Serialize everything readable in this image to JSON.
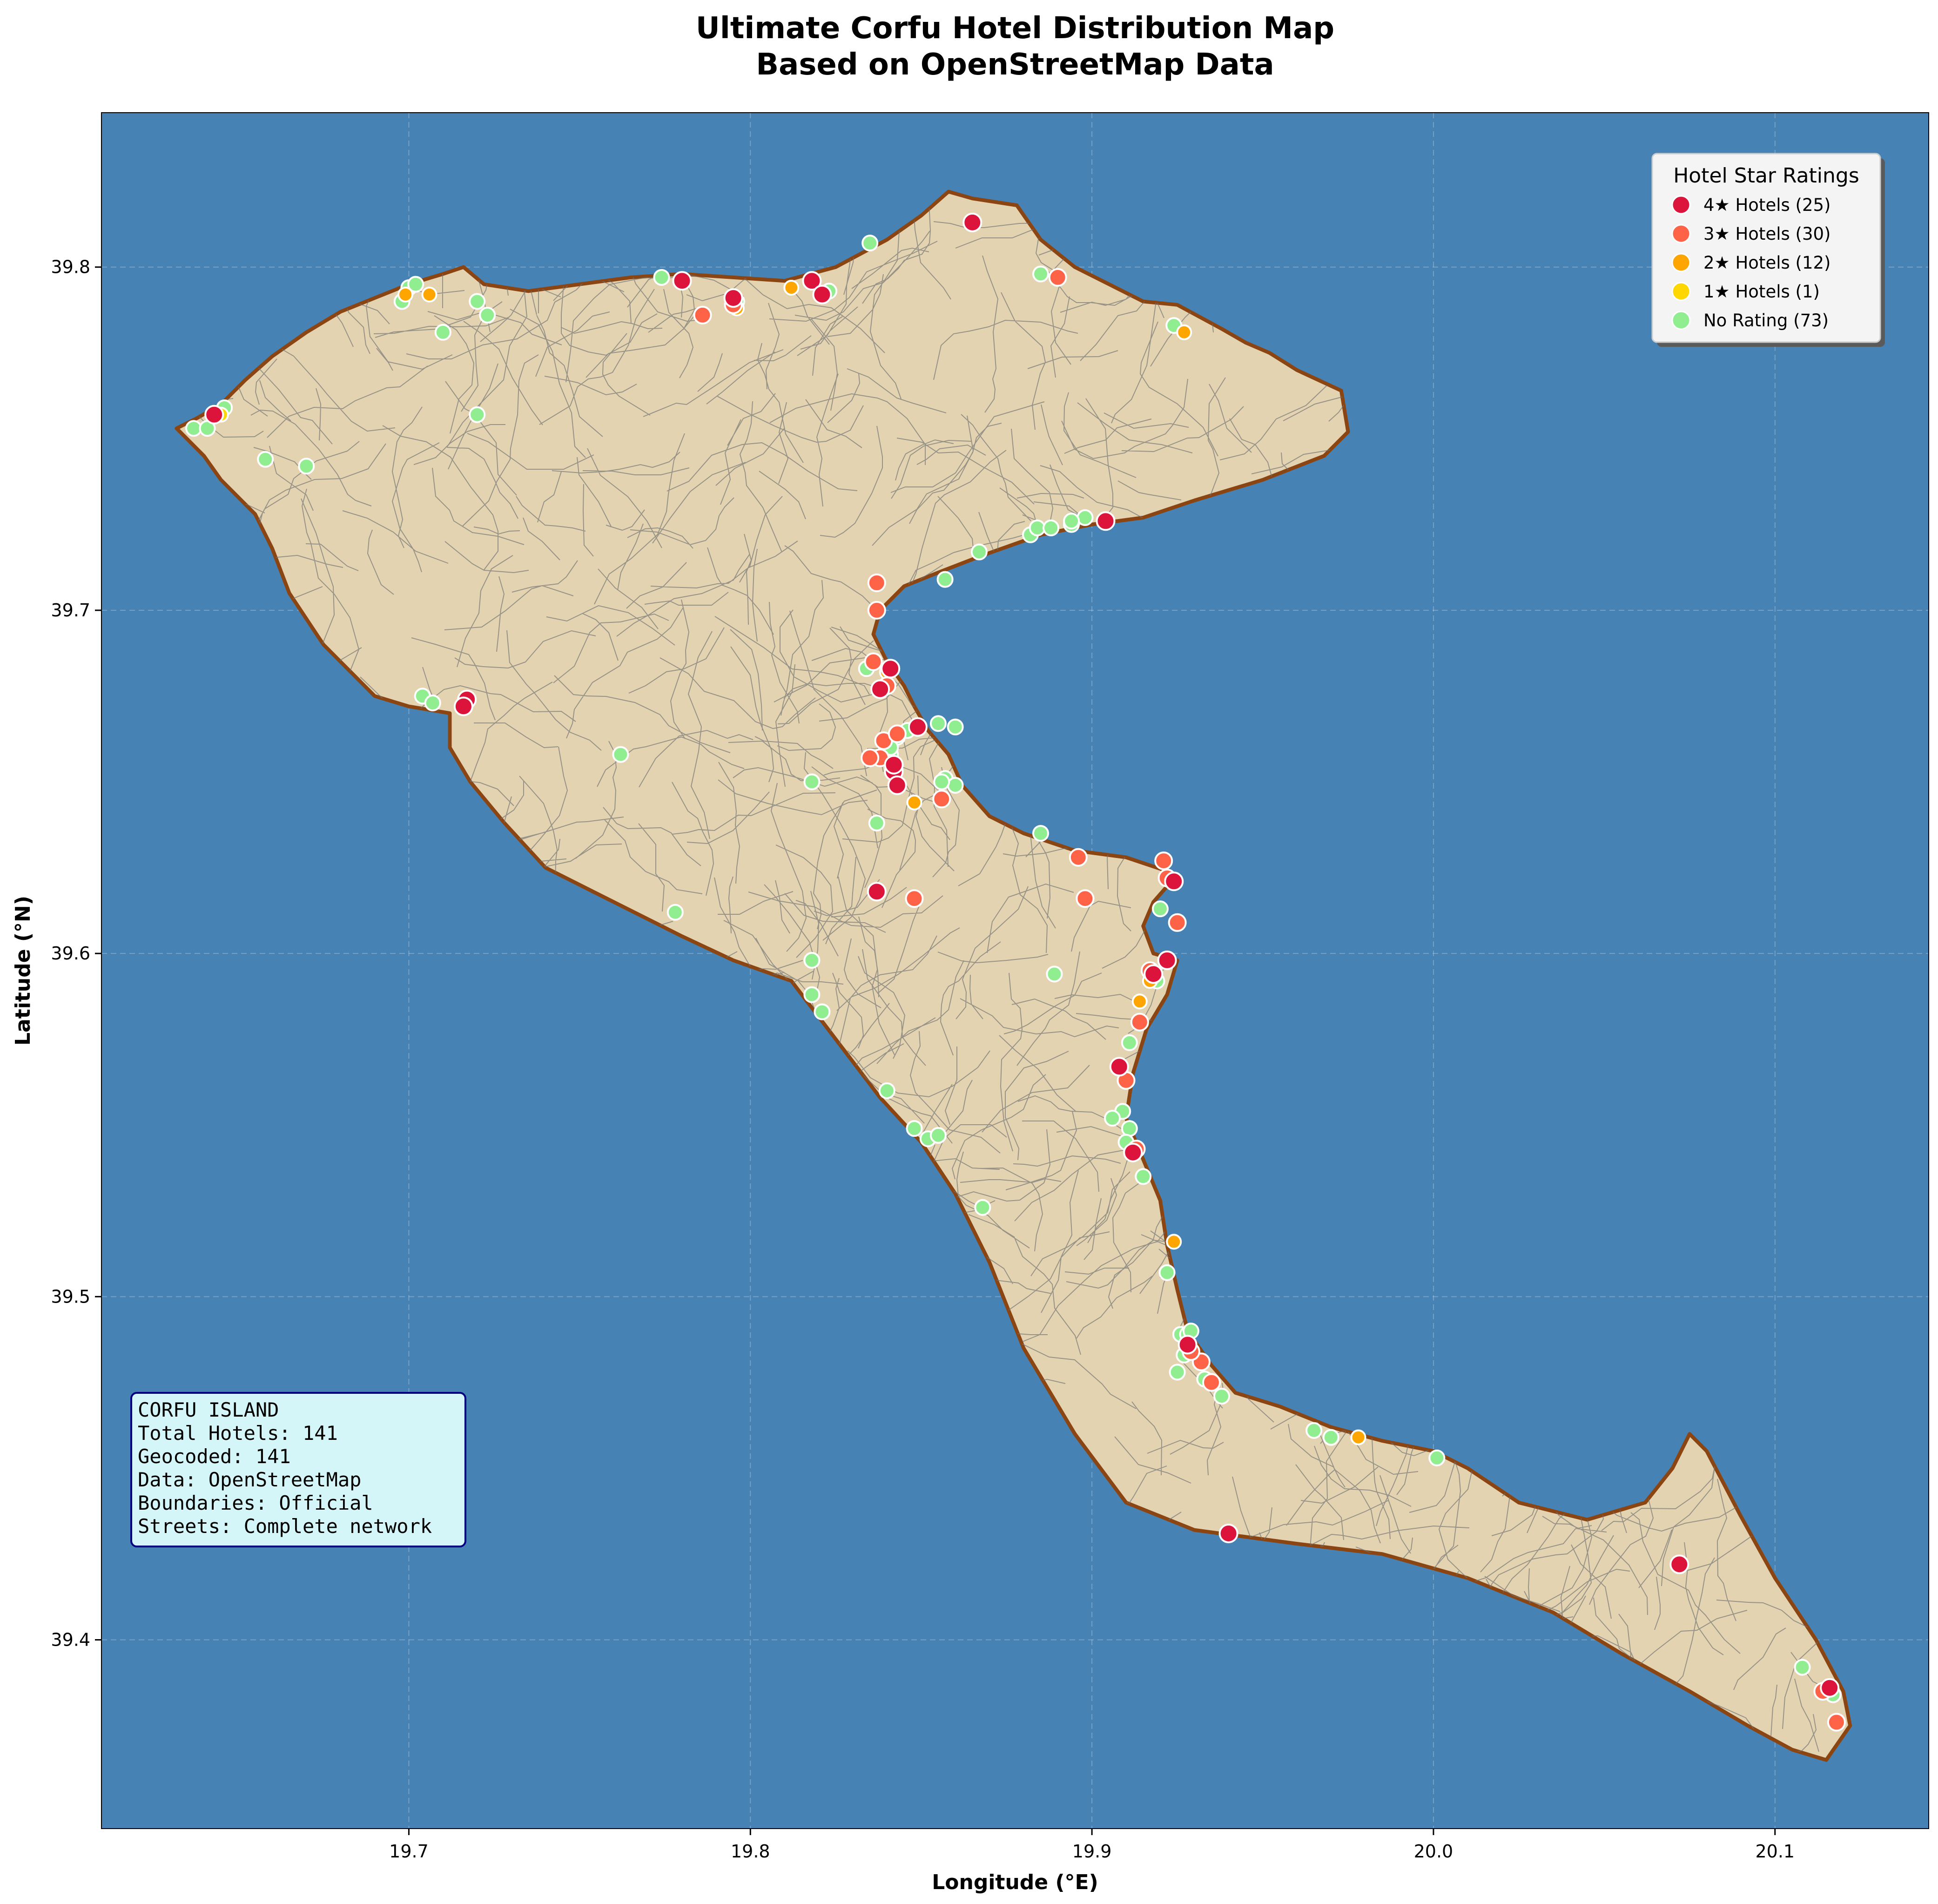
{
  "title": {
    "line1": "Ultimate Corfu Hotel Distribution Map",
    "line2": "Based on OpenStreetMap Data"
  },
  "axes": {
    "xlabel": "Longitude (°E)",
    "ylabel": "Latitude (°N)",
    "xlim": [
      19.61,
      20.145
    ],
    "ylim": [
      39.345,
      39.845
    ],
    "xticks": [
      "19.7",
      "19.8",
      "19.9",
      "20.0",
      "20.1"
    ],
    "yticks": [
      "39.4",
      "39.5",
      "39.6",
      "39.7",
      "39.8"
    ],
    "grid": true
  },
  "colors": {
    "sea": "#4682b4",
    "land": "#e3d3b1",
    "coast": "#8b4513",
    "streets": "#707070",
    "info_bg": "#d4f6f8",
    "info_border": "#000080"
  },
  "legend": {
    "title": "Hotel Star Ratings",
    "placement": "top-right",
    "entries": [
      {
        "label": "4★ Hotels (25)",
        "color": "#dc143c"
      },
      {
        "label": "3★ Hotels (30)",
        "color": "#ff6347"
      },
      {
        "label": "2★ Hotels (12)",
        "color": "#ffa500"
      },
      {
        "label": "1★ Hotels (1)",
        "color": "#ffd700"
      },
      {
        "label": "No Rating (73)",
        "color": "#90ee90"
      }
    ]
  },
  "info_box": {
    "placement": "lower-left",
    "lines": [
      "CORFU ISLAND",
      "Total Hotels: 141",
      "Geocoded: 141",
      "Data: OpenStreetMap",
      "Boundaries: Official",
      "Streets: Complete network"
    ]
  },
  "chart_data": {
    "type": "scatter",
    "x_unit": "longitude",
    "y_unit": "latitude",
    "island_outline": [
      [
        19.632,
        39.753
      ],
      [
        19.638,
        39.756
      ],
      [
        19.645,
        39.76
      ],
      [
        19.652,
        39.767
      ],
      [
        19.66,
        39.774
      ],
      [
        19.67,
        39.781
      ],
      [
        19.68,
        39.787
      ],
      [
        19.69,
        39.791
      ],
      [
        19.7,
        39.795
      ],
      [
        19.71,
        39.798
      ],
      [
        19.716,
        39.8
      ],
      [
        19.722,
        39.795
      ],
      [
        19.735,
        39.793
      ],
      [
        19.75,
        39.795
      ],
      [
        19.765,
        39.797
      ],
      [
        19.78,
        39.798
      ],
      [
        19.795,
        39.797
      ],
      [
        19.81,
        39.796
      ],
      [
        19.825,
        39.8
      ],
      [
        19.84,
        39.808
      ],
      [
        19.85,
        39.815
      ],
      [
        19.858,
        39.822
      ],
      [
        19.865,
        39.82
      ],
      [
        19.878,
        39.818
      ],
      [
        19.885,
        39.808
      ],
      [
        19.895,
        39.8
      ],
      [
        19.905,
        39.795
      ],
      [
        19.915,
        39.79
      ],
      [
        19.925,
        39.789
      ],
      [
        19.938,
        39.782
      ],
      [
        19.945,
        39.778
      ],
      [
        19.952,
        39.775
      ],
      [
        19.96,
        39.77
      ],
      [
        19.973,
        39.764
      ],
      [
        19.975,
        39.752
      ],
      [
        19.968,
        39.745
      ],
      [
        19.95,
        39.738
      ],
      [
        19.93,
        39.732
      ],
      [
        19.915,
        39.727
      ],
      [
        19.9,
        39.725
      ],
      [
        19.885,
        39.722
      ],
      [
        19.868,
        39.716
      ],
      [
        19.855,
        39.711
      ],
      [
        19.845,
        39.707
      ],
      [
        19.838,
        39.7
      ],
      [
        19.836,
        39.693
      ],
      [
        19.84,
        39.685
      ],
      [
        19.845,
        39.678
      ],
      [
        19.848,
        39.672
      ],
      [
        19.852,
        39.665
      ],
      [
        19.858,
        39.658
      ],
      [
        19.862,
        39.649
      ],
      [
        19.87,
        39.64
      ],
      [
        19.88,
        39.635
      ],
      [
        19.895,
        39.63
      ],
      [
        19.91,
        39.628
      ],
      [
        19.925,
        39.623
      ],
      [
        19.918,
        39.615
      ],
      [
        19.915,
        39.608
      ],
      [
        19.918,
        39.6
      ],
      [
        19.925,
        39.598
      ],
      [
        19.922,
        39.588
      ],
      [
        19.916,
        39.578
      ],
      [
        19.912,
        39.565
      ],
      [
        19.91,
        39.552
      ],
      [
        19.915,
        39.54
      ],
      [
        19.92,
        39.528
      ],
      [
        19.922,
        39.515
      ],
      [
        19.925,
        39.502
      ],
      [
        19.928,
        39.49
      ],
      [
        19.935,
        39.48
      ],
      [
        19.942,
        39.472
      ],
      [
        19.955,
        39.468
      ],
      [
        19.97,
        39.462
      ],
      [
        19.985,
        39.458
      ],
      [
        20.0,
        39.455
      ],
      [
        20.01,
        39.45
      ],
      [
        20.025,
        39.44
      ],
      [
        20.045,
        39.435
      ],
      [
        20.062,
        39.44
      ],
      [
        20.07,
        39.45
      ],
      [
        20.075,
        39.46
      ],
      [
        20.08,
        39.455
      ],
      [
        20.09,
        39.436
      ],
      [
        20.1,
        39.418
      ],
      [
        20.112,
        39.4
      ],
      [
        20.12,
        39.385
      ],
      [
        20.122,
        39.375
      ],
      [
        20.115,
        39.365
      ],
      [
        20.105,
        39.368
      ],
      [
        20.092,
        39.375
      ],
      [
        20.075,
        39.385
      ],
      [
        20.055,
        39.396
      ],
      [
        20.035,
        39.408
      ],
      [
        20.01,
        39.418
      ],
      [
        19.985,
        39.425
      ],
      [
        19.96,
        39.428
      ],
      [
        19.93,
        39.432
      ],
      [
        19.91,
        39.44
      ],
      [
        19.895,
        39.46
      ],
      [
        19.88,
        39.485
      ],
      [
        19.87,
        39.51
      ],
      [
        19.86,
        39.53
      ],
      [
        19.85,
        39.545
      ],
      [
        19.838,
        39.558
      ],
      [
        19.825,
        39.575
      ],
      [
        19.812,
        39.592
      ],
      [
        19.795,
        39.598
      ],
      [
        19.78,
        39.605
      ],
      [
        19.76,
        39.615
      ],
      [
        19.74,
        39.625
      ],
      [
        19.728,
        39.638
      ],
      [
        19.718,
        39.65
      ],
      [
        19.712,
        39.66
      ],
      [
        19.712,
        39.67
      ],
      [
        19.7,
        39.672
      ],
      [
        19.69,
        39.675
      ],
      [
        19.675,
        39.69
      ],
      [
        19.665,
        39.705
      ],
      [
        19.66,
        39.718
      ],
      [
        19.655,
        39.728
      ],
      [
        19.645,
        39.738
      ],
      [
        19.64,
        39.745
      ],
      [
        19.632,
        39.753
      ]
    ],
    "series": [
      {
        "name": "4★ Hotels (25)",
        "color": "#dc143c",
        "points": [
          [
            19.643,
            39.757
          ],
          [
            19.717,
            39.674
          ],
          [
            19.78,
            39.796
          ],
          [
            19.818,
            39.796
          ],
          [
            19.821,
            39.792
          ],
          [
            19.865,
            39.813
          ],
          [
            19.904,
            39.726
          ],
          [
            19.841,
            39.683
          ],
          [
            19.849,
            39.666
          ],
          [
            19.842,
            39.653
          ],
          [
            19.843,
            39.649
          ],
          [
            19.837,
            39.618
          ],
          [
            19.924,
            39.621
          ],
          [
            19.922,
            39.598
          ],
          [
            19.908,
            39.567
          ],
          [
            19.928,
            39.486
          ],
          [
            19.94,
            39.431
          ],
          [
            20.072,
            39.422
          ],
          [
            19.842,
            39.655
          ],
          [
            19.918,
            39.594
          ],
          [
            19.716,
            39.672
          ],
          [
            19.795,
            39.791
          ],
          [
            19.838,
            39.677
          ],
          [
            19.912,
            39.542
          ],
          [
            20.116,
            39.386
          ]
        ]
      },
      {
        "name": "3★ Hotels (30)",
        "color": "#ff6347",
        "points": [
          [
            19.786,
            39.786
          ],
          [
            19.89,
            39.797
          ],
          [
            19.837,
            39.708
          ],
          [
            19.837,
            39.7
          ],
          [
            19.836,
            39.685
          ],
          [
            19.838,
            39.677
          ],
          [
            19.839,
            39.662
          ],
          [
            19.838,
            39.657
          ],
          [
            19.856,
            39.645
          ],
          [
            19.896,
            39.628
          ],
          [
            19.921,
            39.627
          ],
          [
            19.898,
            39.616
          ],
          [
            19.848,
            39.616
          ],
          [
            19.924,
            39.621
          ],
          [
            19.925,
            39.609
          ],
          [
            19.918,
            39.594
          ],
          [
            19.914,
            39.58
          ],
          [
            19.91,
            39.563
          ],
          [
            19.932,
            39.481
          ],
          [
            19.935,
            39.475
          ],
          [
            20.114,
            39.385
          ],
          [
            20.118,
            39.376
          ],
          [
            19.835,
            39.657
          ],
          [
            19.84,
            39.678
          ],
          [
            19.922,
            39.622
          ],
          [
            19.913,
            39.543
          ],
          [
            19.929,
            39.484
          ],
          [
            19.795,
            39.789
          ],
          [
            19.843,
            39.664
          ],
          [
            19.917,
            39.595
          ]
        ]
      },
      {
        "name": "2★ Hotels (12)",
        "color": "#ffa500",
        "points": [
          [
            19.706,
            39.792
          ],
          [
            19.796,
            39.788
          ],
          [
            19.812,
            39.794
          ],
          [
            19.927,
            39.781
          ],
          [
            19.84,
            39.682
          ],
          [
            19.848,
            39.644
          ],
          [
            19.917,
            39.592
          ],
          [
            19.914,
            39.586
          ],
          [
            19.913,
            39.543
          ],
          [
            19.924,
            39.516
          ],
          [
            19.978,
            39.459
          ],
          [
            19.699,
            39.792
          ]
        ]
      },
      {
        "name": "1★ Hotels (1)",
        "color": "#ffd700",
        "points": [
          [
            19.645,
            39.757
          ]
        ]
      },
      {
        "name": "No Rating (73)",
        "color": "#90ee90",
        "points": [
          [
            19.637,
            39.753
          ],
          [
            19.641,
            39.753
          ],
          [
            19.646,
            39.759
          ],
          [
            19.658,
            39.744
          ],
          [
            19.67,
            39.742
          ],
          [
            19.698,
            39.79
          ],
          [
            19.7,
            39.794
          ],
          [
            19.702,
            39.795
          ],
          [
            19.71,
            39.781
          ],
          [
            19.72,
            39.79
          ],
          [
            19.723,
            39.786
          ],
          [
            19.72,
            39.757
          ],
          [
            19.704,
            39.675
          ],
          [
            19.707,
            39.673
          ],
          [
            19.762,
            39.658
          ],
          [
            19.774,
            39.797
          ],
          [
            19.796,
            39.79
          ],
          [
            19.835,
            39.807
          ],
          [
            19.885,
            39.798
          ],
          [
            19.924,
            39.783
          ],
          [
            19.882,
            39.722
          ],
          [
            19.884,
            39.724
          ],
          [
            19.888,
            39.724
          ],
          [
            19.894,
            39.725
          ],
          [
            19.898,
            39.727
          ],
          [
            19.867,
            39.717
          ],
          [
            19.857,
            39.709
          ],
          [
            19.834,
            39.683
          ],
          [
            19.855,
            39.667
          ],
          [
            19.86,
            39.666
          ],
          [
            19.846,
            39.665
          ],
          [
            19.843,
            39.663
          ],
          [
            19.841,
            39.658
          ],
          [
            19.857,
            39.651
          ],
          [
            19.86,
            39.649
          ],
          [
            19.818,
            39.65
          ],
          [
            19.837,
            39.638
          ],
          [
            19.885,
            39.635
          ],
          [
            19.92,
            39.613
          ],
          [
            19.778,
            39.612
          ],
          [
            19.818,
            39.598
          ],
          [
            19.818,
            39.588
          ],
          [
            19.821,
            39.583
          ],
          [
            19.889,
            39.594
          ],
          [
            19.919,
            39.592
          ],
          [
            19.911,
            39.574
          ],
          [
            19.84,
            39.56
          ],
          [
            19.909,
            39.554
          ],
          [
            19.911,
            39.549
          ],
          [
            19.91,
            39.545
          ],
          [
            19.848,
            39.549
          ],
          [
            19.852,
            39.546
          ],
          [
            19.855,
            39.547
          ],
          [
            19.915,
            39.535
          ],
          [
            19.868,
            39.526
          ],
          [
            19.922,
            39.507
          ],
          [
            19.926,
            39.489
          ],
          [
            19.928,
            39.489
          ],
          [
            19.927,
            39.483
          ],
          [
            19.925,
            39.478
          ],
          [
            19.933,
            39.476
          ],
          [
            19.938,
            39.471
          ],
          [
            19.965,
            39.461
          ],
          [
            19.97,
            39.459
          ],
          [
            20.001,
            39.453
          ],
          [
            20.108,
            39.392
          ],
          [
            20.117,
            39.384
          ],
          [
            19.841,
            39.66
          ],
          [
            19.906,
            39.552
          ],
          [
            19.929,
            39.49
          ],
          [
            19.823,
            39.793
          ],
          [
            19.894,
            39.726
          ],
          [
            19.856,
            39.65
          ]
        ]
      }
    ]
  }
}
